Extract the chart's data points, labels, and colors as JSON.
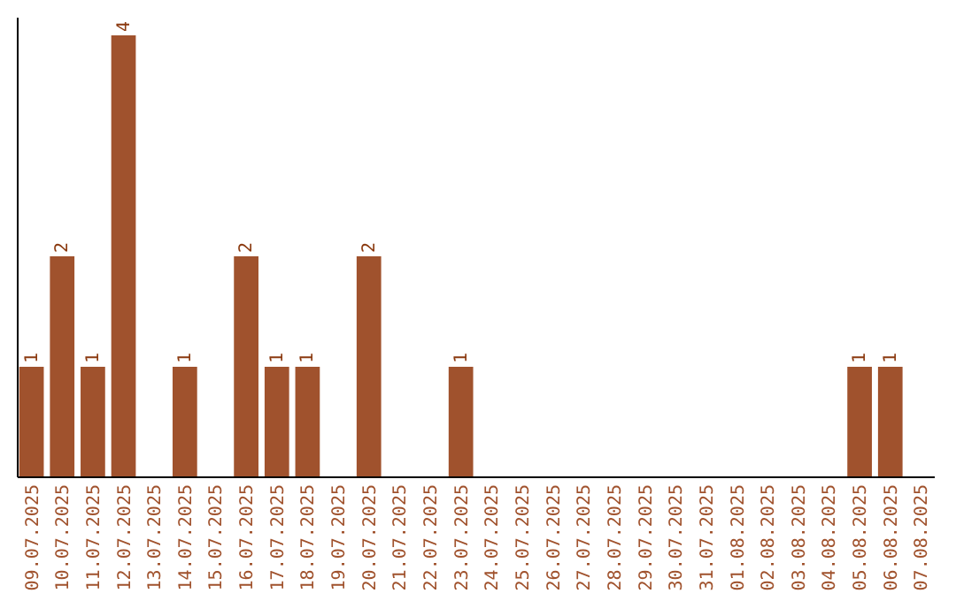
{
  "chart_data": {
    "type": "bar",
    "categories": [
      "09.07.2025",
      "10.07.2025",
      "11.07.2025",
      "12.07.2025",
      "13.07.2025",
      "14.07.2025",
      "15.07.2025",
      "16.07.2025",
      "17.07.2025",
      "18.07.2025",
      "19.07.2025",
      "20.07.2025",
      "21.07.2025",
      "22.07.2025",
      "23.07.2025",
      "24.07.2025",
      "25.07.2025",
      "26.07.2025",
      "27.07.2025",
      "28.07.2025",
      "29.07.2025",
      "30.07.2025",
      "31.07.2025",
      "01.08.2025",
      "02.08.2025",
      "03.08.2025",
      "04.08.2025",
      "05.08.2025",
      "06.08.2025",
      "07.08.2025"
    ],
    "values": [
      1,
      2,
      1,
      4,
      0,
      1,
      0,
      2,
      1,
      1,
      0,
      2,
      0,
      0,
      1,
      0,
      0,
      0,
      0,
      0,
      0,
      0,
      0,
      0,
      0,
      0,
      0,
      1,
      1,
      0
    ],
    "value_labels": [
      "1",
      "2",
      "1",
      "4",
      null,
      "1",
      null,
      "2",
      "1",
      "1",
      null,
      "2",
      null,
      null,
      "1",
      null,
      null,
      null,
      null,
      null,
      null,
      null,
      null,
      null,
      null,
      null,
      null,
      "1",
      "1",
      null
    ],
    "color": "#a0522d",
    "grid": false,
    "tick_labels": "x"
  }
}
